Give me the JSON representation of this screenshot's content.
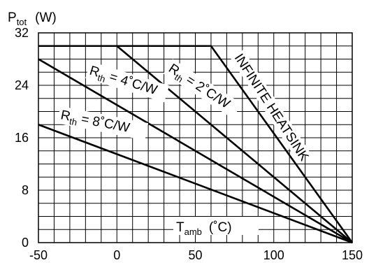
{
  "chart_data": {
    "type": "line",
    "title": "",
    "ylabel": {
      "symbol": "P",
      "subscript": "tot",
      "unit": "(W)"
    },
    "xlabel": {
      "symbol": "T",
      "subscript": "amb",
      "unit": "(˚C)"
    },
    "xlim": [
      -50,
      150
    ],
    "ylim": [
      0,
      32
    ],
    "xticks": [
      "-50",
      "0",
      "50",
      "100",
      "150"
    ],
    "xtick_values": [
      -50,
      0,
      50,
      100,
      150
    ],
    "yticks": [
      "0",
      "8",
      "16",
      "24",
      "32"
    ],
    "ytick_values": [
      0,
      8,
      16,
      24,
      32
    ],
    "grid": true,
    "max_power_limit": 30,
    "series": [
      {
        "name": "INFINITE HEATSINK",
        "points": [
          [
            -50,
            30
          ],
          [
            60,
            30
          ],
          [
            150,
            0
          ]
        ]
      },
      {
        "name": "R th = 2˚C/W",
        "prefix": "R",
        "subscript": "th",
        "suffix": " = 2˚C/W",
        "points": [
          [
            0,
            30
          ],
          [
            150,
            0
          ]
        ]
      },
      {
        "name": "R th = 4˚C/W",
        "prefix": "R",
        "subscript": "th",
        "suffix": " = 4˚C/W",
        "points": [
          [
            -50,
            28
          ],
          [
            150,
            0
          ]
        ]
      },
      {
        "name": "R th = 8˚C/W",
        "prefix": "R",
        "subscript": "th",
        "suffix": " = 8˚C/W",
        "points": [
          [
            -50,
            18
          ],
          [
            150,
            0
          ]
        ]
      }
    ]
  }
}
